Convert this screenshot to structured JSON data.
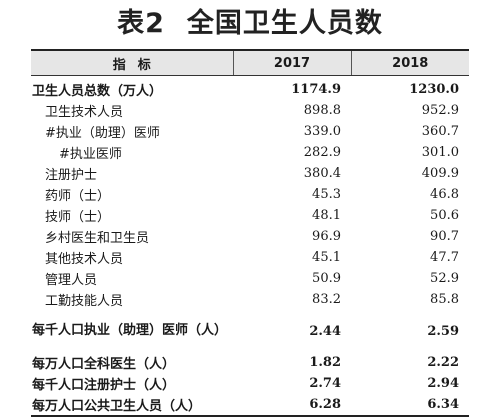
{
  "title": {
    "number": "表2",
    "text": "全国卫生人员数"
  },
  "table": {
    "header": {
      "indicator": "指标",
      "year1": "2017",
      "year2": "2018"
    },
    "rows": [
      {
        "label": "卫生人员总数（万人）",
        "v2017": "1174.9",
        "v2018": "1230.0"
      },
      {
        "label": "卫生技术人员",
        "v2017": "898.8",
        "v2018": "952.9"
      },
      {
        "label": "#执业（助理）医师",
        "v2017": "339.0",
        "v2018": "360.7"
      },
      {
        "label": "#执业医师",
        "v2017": "282.9",
        "v2018": "301.0"
      },
      {
        "label": "注册护士",
        "v2017": "380.4",
        "v2018": "409.9"
      },
      {
        "label": "药师（士）",
        "v2017": "45.3",
        "v2018": "46.8"
      },
      {
        "label": "技师（士）",
        "v2017": "48.1",
        "v2018": "50.6"
      },
      {
        "label": "乡村医生和卫生员",
        "v2017": "96.9",
        "v2018": "90.7"
      },
      {
        "label": "其他技术人员",
        "v2017": "45.1",
        "v2018": "47.7"
      },
      {
        "label": "管理人员",
        "v2017": "50.9",
        "v2018": "52.9"
      },
      {
        "label": "工勤技能人员",
        "v2017": "83.2",
        "v2018": "85.8"
      },
      {
        "label": "每千人口执业（助理）医师（人）",
        "v2017": "2.44",
        "v2018": "2.59"
      },
      {
        "label": "每万人口全科医生（人）",
        "v2017": "1.82",
        "v2018": "2.22"
      },
      {
        "label": "每千人口注册护士（人）",
        "v2017": "2.74",
        "v2018": "2.94"
      },
      {
        "label": "每万人口公共卫生人员（人）",
        "v2017": "6.28",
        "v2018": "6.34"
      }
    ]
  }
}
